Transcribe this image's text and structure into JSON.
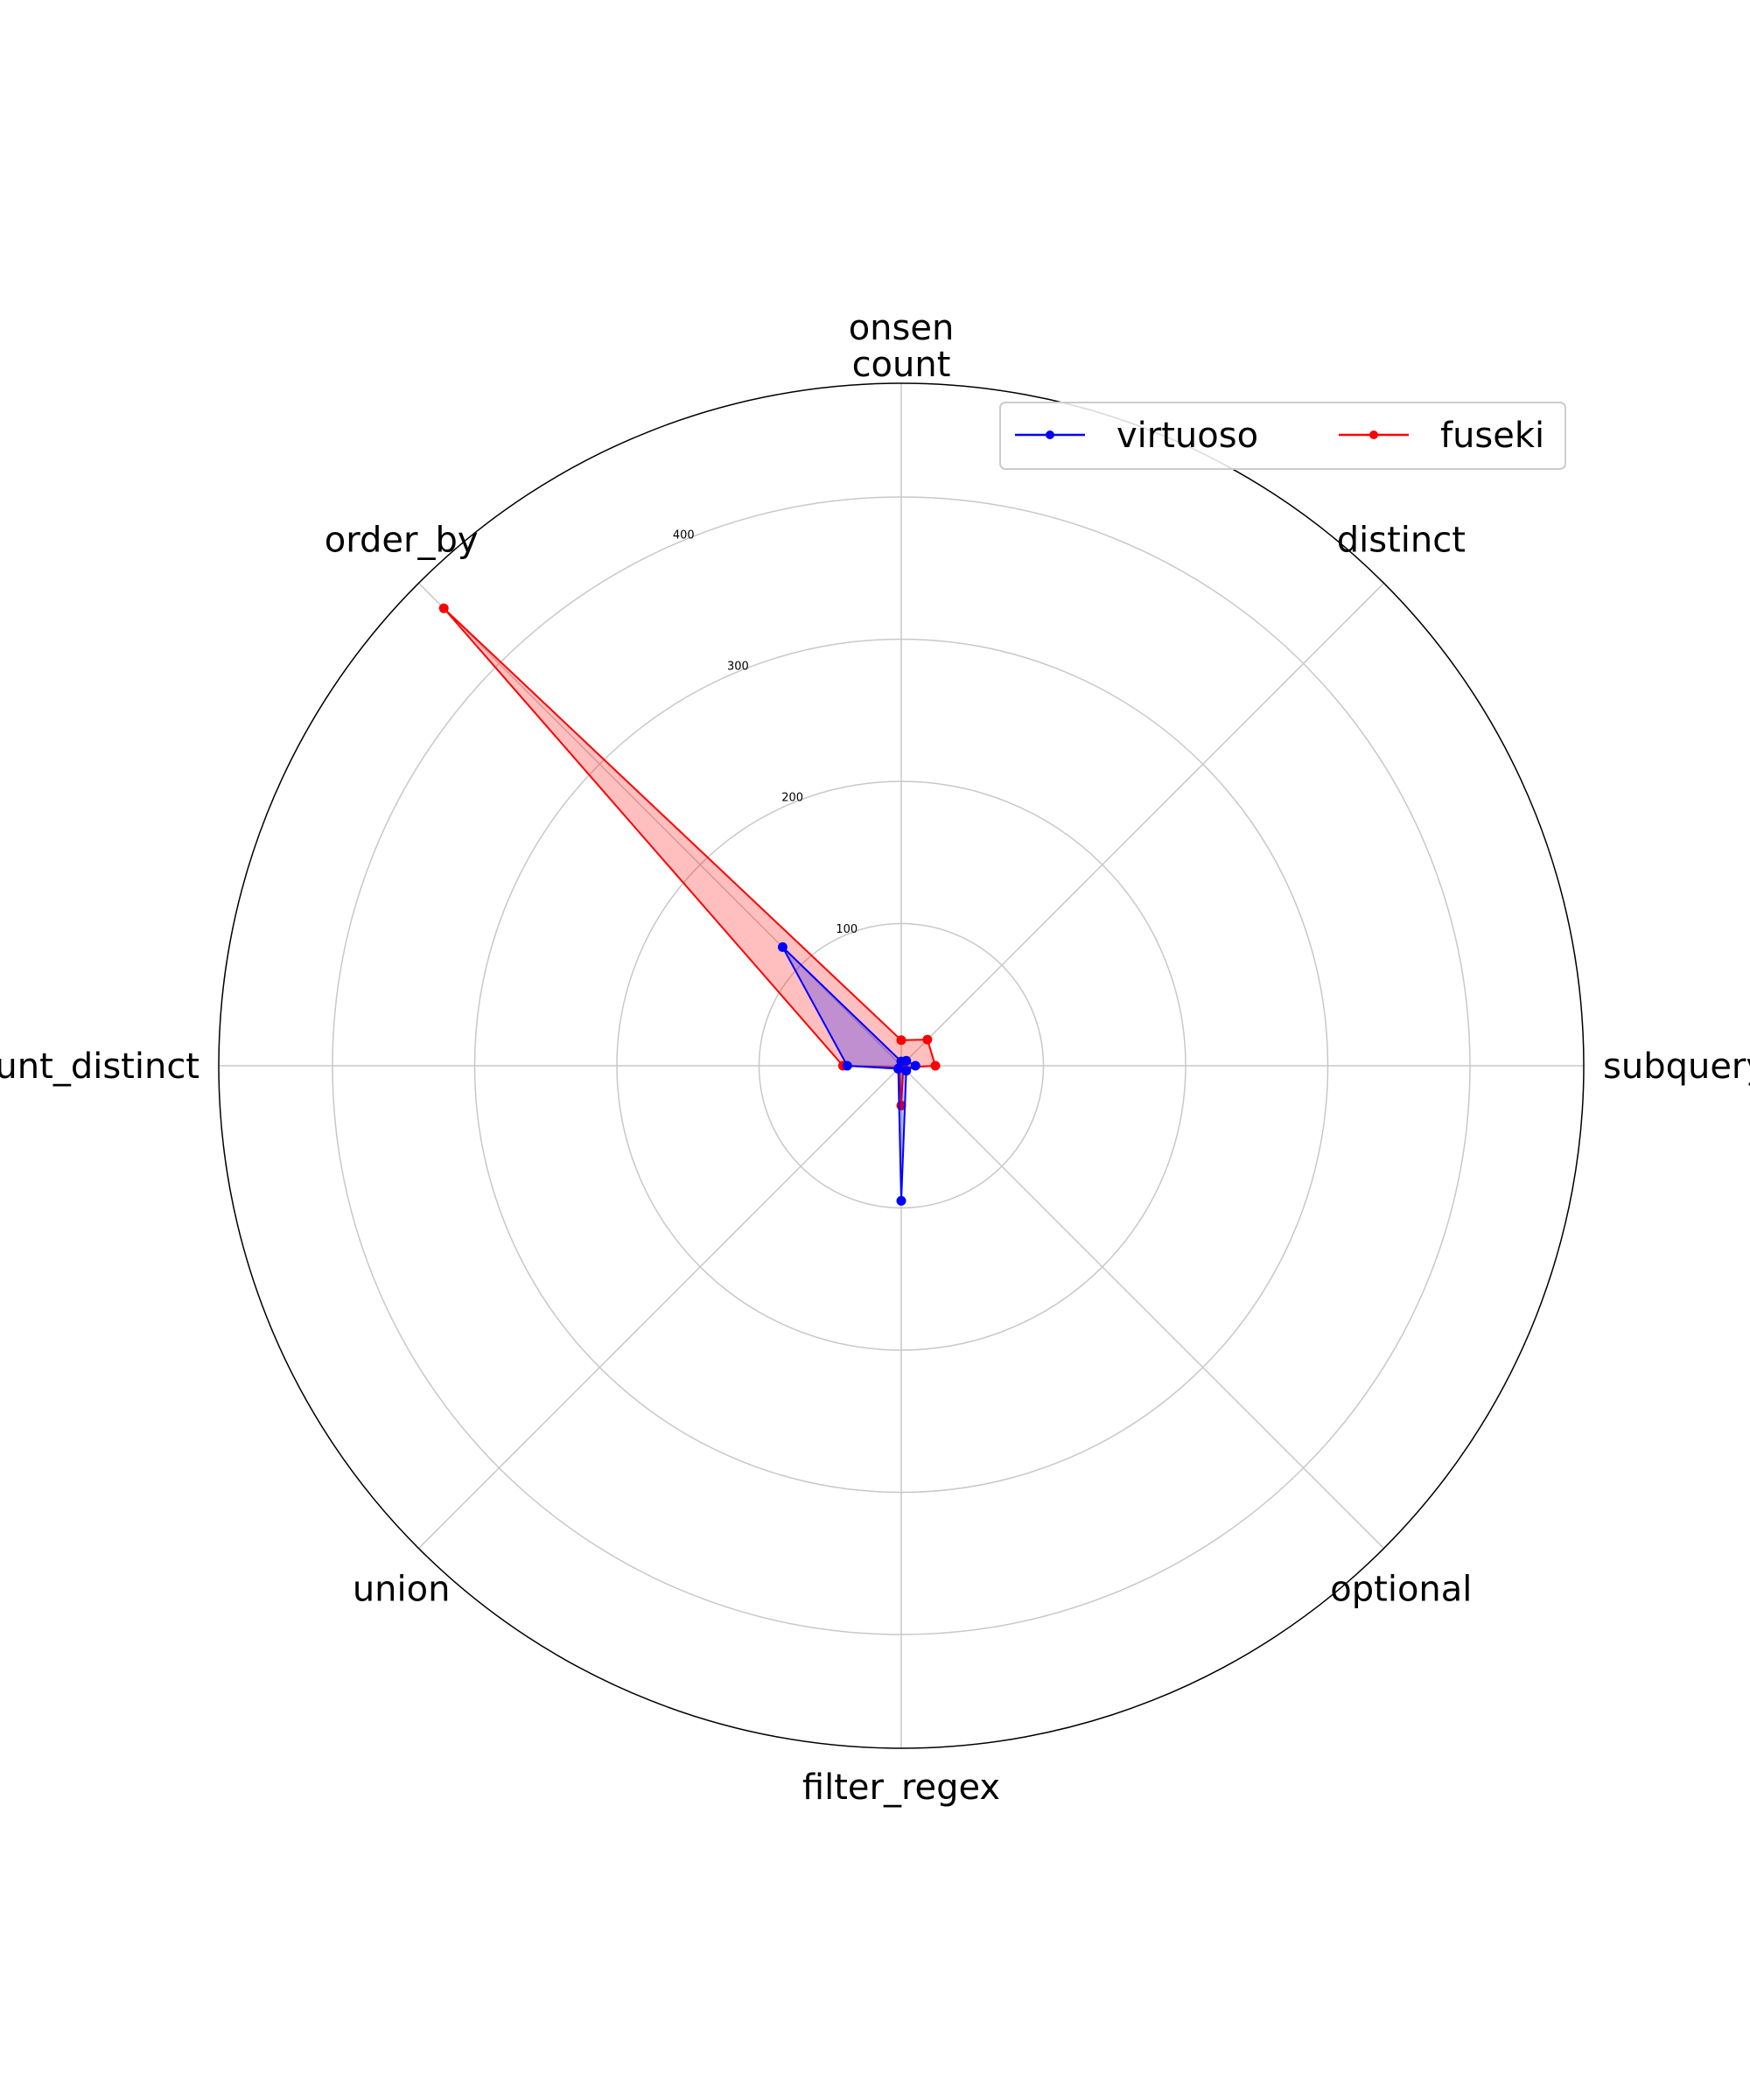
{
  "chart_data": {
    "type": "radar",
    "title_lines": [
      "onsen",
      "count"
    ],
    "categories": [
      "count",
      "distinct",
      "subquery",
      "optional",
      "filter_regex",
      "union",
      "group_by_having_count_distinct",
      "order_by"
    ],
    "radial_ticks": [
      100,
      200,
      300,
      400
    ],
    "rlim": [
      0,
      480
    ],
    "grid": true,
    "legend": {
      "placement": "top-right",
      "columns": 2
    },
    "series": [
      {
        "name": "virtuoso",
        "color": "#0000ff",
        "values": [
          3,
          5,
          10,
          5,
          95,
          3,
          38,
          118
        ]
      },
      {
        "name": "fuseki",
        "color": "#ff0000",
        "values": [
          18,
          26,
          24,
          2,
          28,
          2,
          41,
          455
        ]
      }
    ]
  }
}
